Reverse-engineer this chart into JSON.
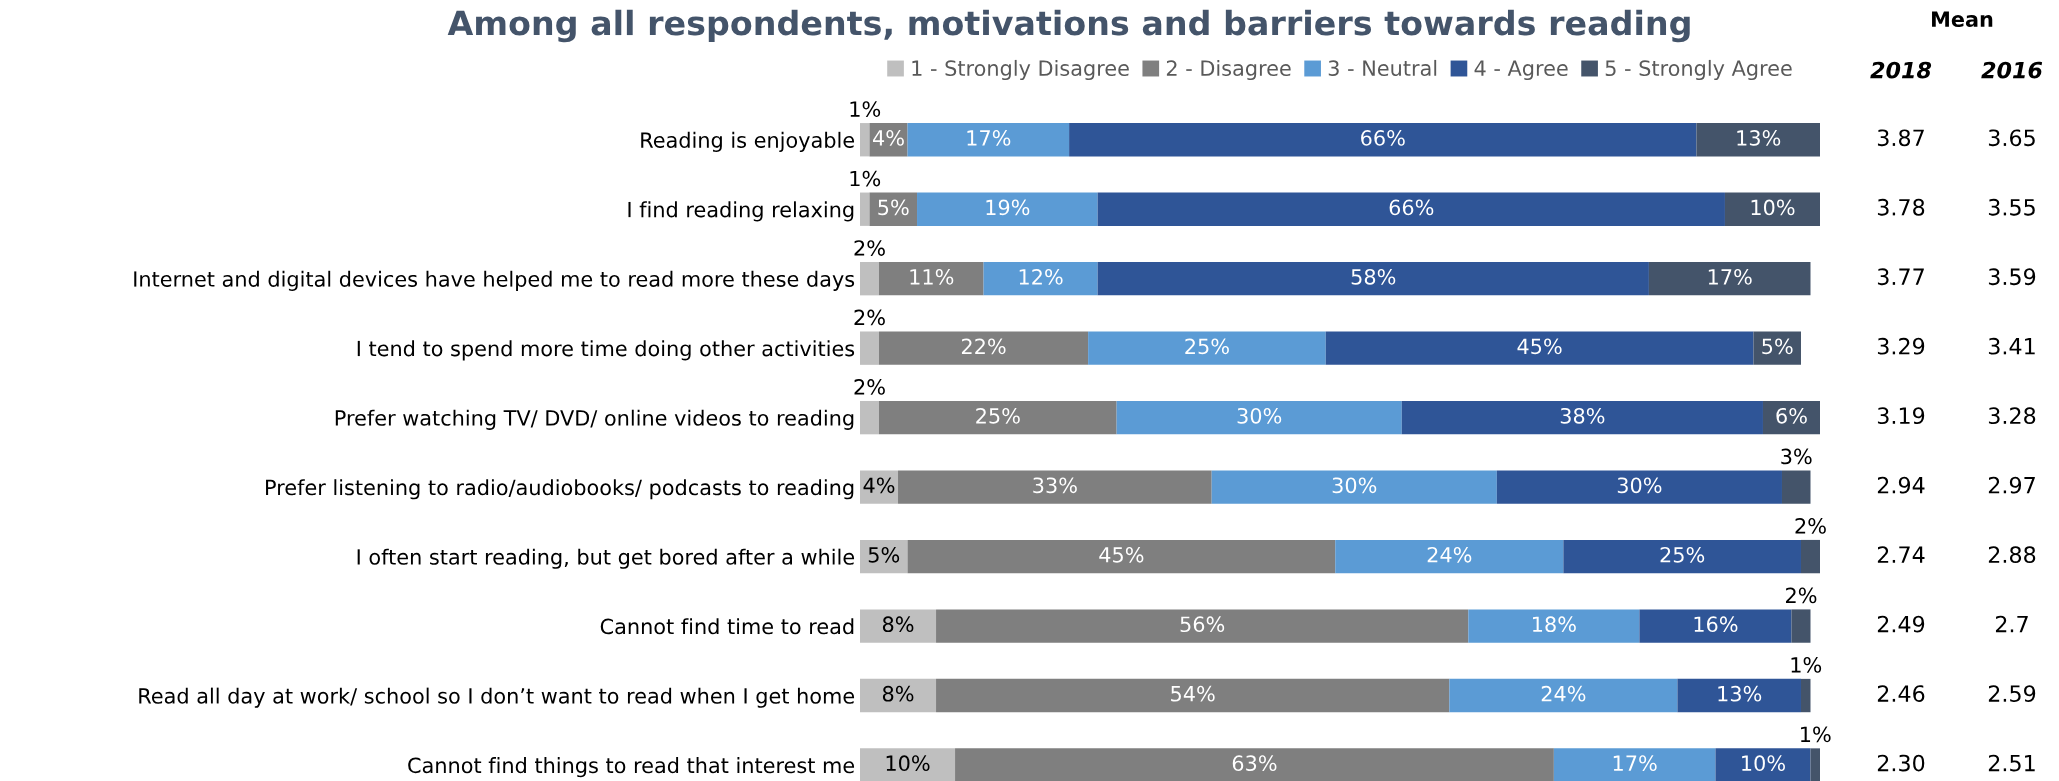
{
  "chart_data": [
    {
      "type": "bar",
      "orientation": "horizontal",
      "stacked": true,
      "title": "Among all respondents, motivations and barriers towards reading",
      "categories": [
        "Reading is enjoyable",
        "I find reading relaxing",
        "Internet and digital devices have helped me to read more these days",
        "I tend to spend more time doing other activities",
        "Prefer watching TV/ DVD/ online videos to reading",
        "Prefer listening to radio/audiobooks/ podcasts to reading",
        "I often start reading, but get bored after a while",
        "Cannot find time to read",
        "Read all day at work/ school so I don’t want to read when I get home",
        "Cannot find things to read that interest me"
      ],
      "series": [
        {
          "name": "1 - Strongly Disagree",
          "color": "#bfbfbf",
          "values": [
            1,
            1,
            2,
            2,
            2,
            4,
            5,
            8,
            8,
            10
          ],
          "value_labels": [
            "1%",
            "1%",
            "2%",
            "2%",
            "2%",
            "4%",
            "5%",
            "8%",
            "8%",
            "10%"
          ]
        },
        {
          "name": "2 - Disagree",
          "color": "#7f7f7f",
          "values": [
            4,
            5,
            11,
            22,
            25,
            33,
            45,
            56,
            54,
            63
          ],
          "value_labels": [
            "4%",
            "5%",
            "11%",
            "22%",
            "25%",
            "33%",
            "45%",
            "56%",
            "54%",
            "63%"
          ]
        },
        {
          "name": "3 - Neutral",
          "color": "#5b9bd5",
          "values": [
            17,
            19,
            12,
            25,
            30,
            30,
            24,
            18,
            24,
            17
          ],
          "value_labels": [
            "17%",
            "19%",
            "12%",
            "25%",
            "30%",
            "30%",
            "24%",
            "18%",
            "24%",
            "17%"
          ]
        },
        {
          "name": "4 - Agree",
          "color": "#2f5597",
          "values": [
            66,
            66,
            58,
            45,
            38,
            30,
            25,
            16,
            13,
            10
          ],
          "value_labels": [
            "66%",
            "66%",
            "58%",
            "45%",
            "38%",
            "30%",
            "25%",
            "16%",
            "13%",
            "10%"
          ]
        },
        {
          "name": "5 - Strongly Agree",
          "color": "#44546a",
          "values": [
            13,
            10,
            17,
            5,
            6,
            3,
            2,
            2,
            1,
            1
          ],
          "value_labels": [
            "13%",
            "10%",
            "17%",
            "5%",
            "6%",
            "3%",
            "2%",
            "2%",
            "1%",
            "1%"
          ]
        }
      ],
      "tick_labels": "y",
      "legend": "top"
    },
    {
      "type": "other",
      "title": "Mean",
      "categories": [
        "2018",
        "2016"
      ],
      "cell_labels": [
        [
          "3.87",
          "3.65"
        ],
        [
          "3.78",
          "3.55"
        ],
        [
          "3.77",
          "3.59"
        ],
        [
          "3.29",
          "3.41"
        ],
        [
          "3.19",
          "3.28"
        ],
        [
          "2.94",
          "2.97"
        ],
        [
          "2.74",
          "2.88"
        ],
        [
          "2.49",
          "2.7"
        ],
        [
          "2.46",
          "2.59"
        ],
        [
          "2.30",
          "2.51"
        ]
      ]
    }
  ]
}
